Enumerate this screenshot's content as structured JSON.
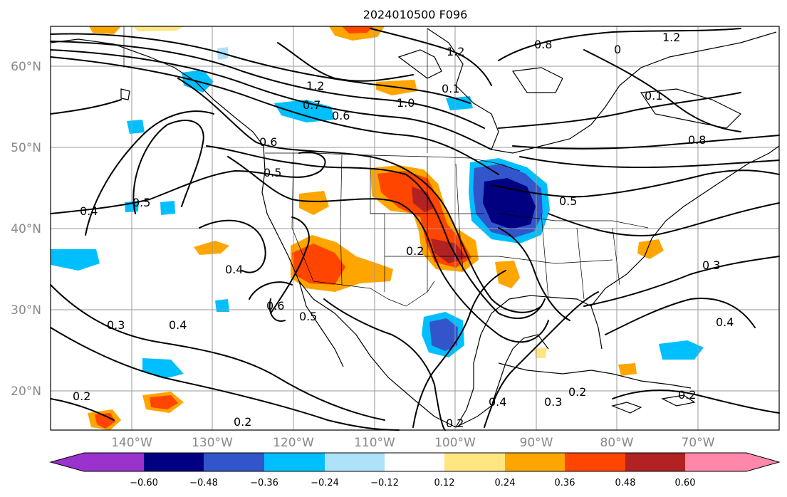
{
  "title": "2024010500 F096",
  "lat_labels": [
    "60°N",
    "50°N",
    "40°N",
    "30°N",
    "20°N"
  ],
  "lon_labels": [
    "140°W",
    "130°W",
    "120°W",
    "110°W",
    "100°W",
    "90°W",
    "80°W",
    "70°W"
  ],
  "contour_labels": [
    "1.2",
    "0.8",
    "1.2",
    "1.2",
    "0.7",
    "0.6",
    "1.0",
    "0.6",
    "0.5",
    "0.4",
    "0.5",
    "0.8",
    "0.5",
    "0.4",
    "0.6",
    "0.5",
    "0.2",
    "0.3",
    "0.4",
    "0.4",
    "0.3",
    "0.2",
    "0.2",
    "0.4",
    "0.2",
    "0.2",
    "0.3",
    "0.1",
    "0",
    "0.1",
    "0.2"
  ],
  "colorbar": {
    "ticks": [
      "−0.60",
      "−0.48",
      "−0.36",
      "−0.24",
      "−0.12",
      "0.12",
      "0.24",
      "0.36",
      "0.48",
      "0.60"
    ],
    "colors": [
      "#9933cc",
      "#000080",
      "#3355cc",
      "#00bfff",
      "#aee1fa",
      "#ffffff",
      "#ffe680",
      "#ffa500",
      "#ff4500",
      "#b22222",
      "#ff88aa"
    ]
  }
}
